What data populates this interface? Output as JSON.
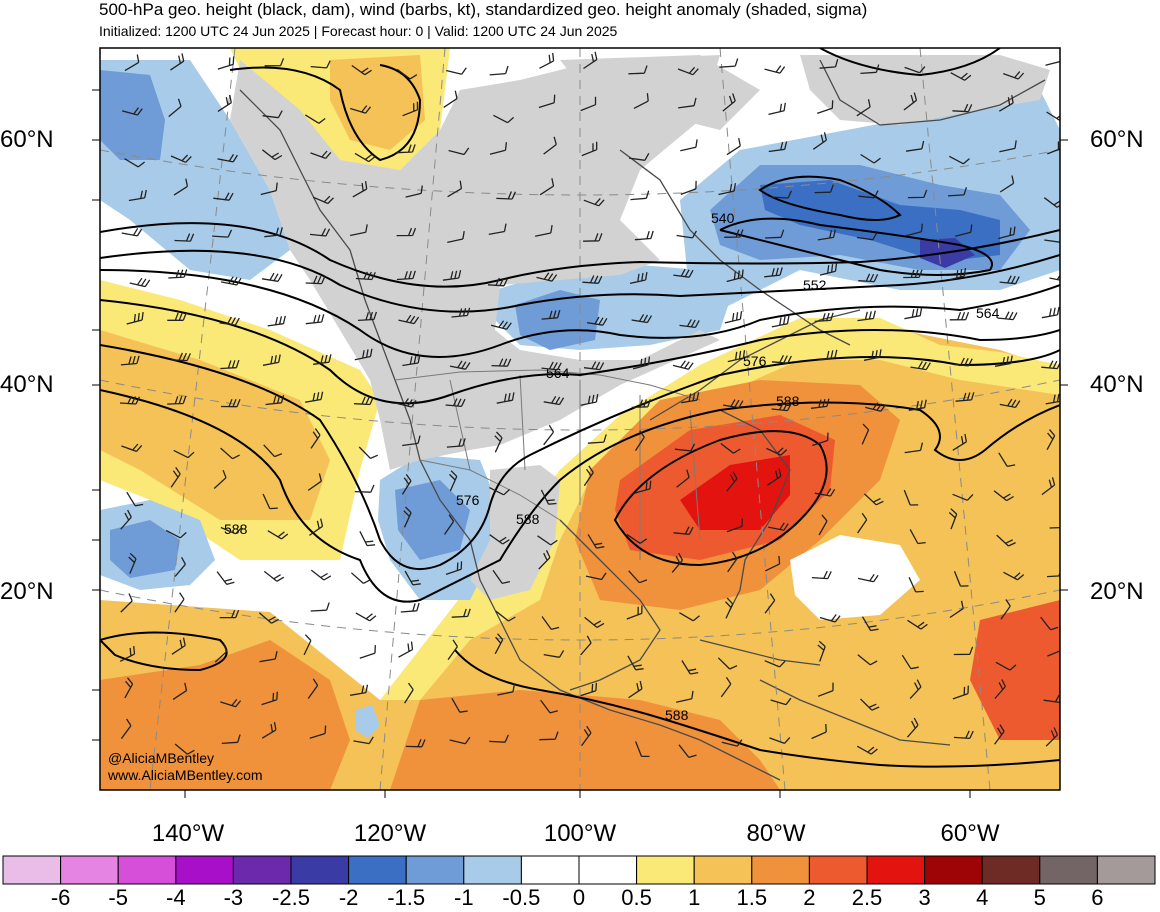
{
  "header": {
    "title": "500-hPa geo. height (black, dam), wind (barbs, kt), standardized geo. height anomaly (shaded, sigma)",
    "subtitle": "Initialized: 1200 UTC 24 Jun 2025 | Forecast hour: 0 | Valid: 1200 UTC 24 Jun 2025"
  },
  "map": {
    "lat_labels": [
      "60°N",
      "40°N",
      "20°N"
    ],
    "lon_labels": [
      "140°W",
      "120°W",
      "100°W",
      "80°W",
      "60°W"
    ],
    "contour_labels": [
      "540",
      "552",
      "564",
      "564",
      "576",
      "576",
      "588",
      "588",
      "588",
      "588"
    ],
    "credits": {
      "handle": "@AliciaMBentley",
      "website": "www.AliciaMBentley.com"
    }
  },
  "colorbar": {
    "ticks": [
      "-6",
      "-5",
      "-4",
      "-3",
      "-2.5",
      "-2",
      "-1.5",
      "-1",
      "-0.5",
      "0",
      "0.5",
      "1",
      "1.5",
      "2",
      "2.5",
      "3",
      "4",
      "5",
      "6"
    ],
    "colors": [
      "#eabde8",
      "#e684e3",
      "#d64fd8",
      "#a80fc9",
      "#6a2aab",
      "#3b3ba6",
      "#3a6fc3",
      "#6f9bd6",
      "#a7cbe8",
      "#ffffff",
      "#ffffff",
      "#fae877",
      "#f4c256",
      "#f0913c",
      "#ee5a30",
      "#e3140f",
      "#9e0306",
      "#6e2a25",
      "#736566",
      "#a49a99"
    ]
  },
  "colors": {
    "land": "#d2d2d2",
    "coast": "#4a4a4a",
    "contour": "#000000"
  }
}
